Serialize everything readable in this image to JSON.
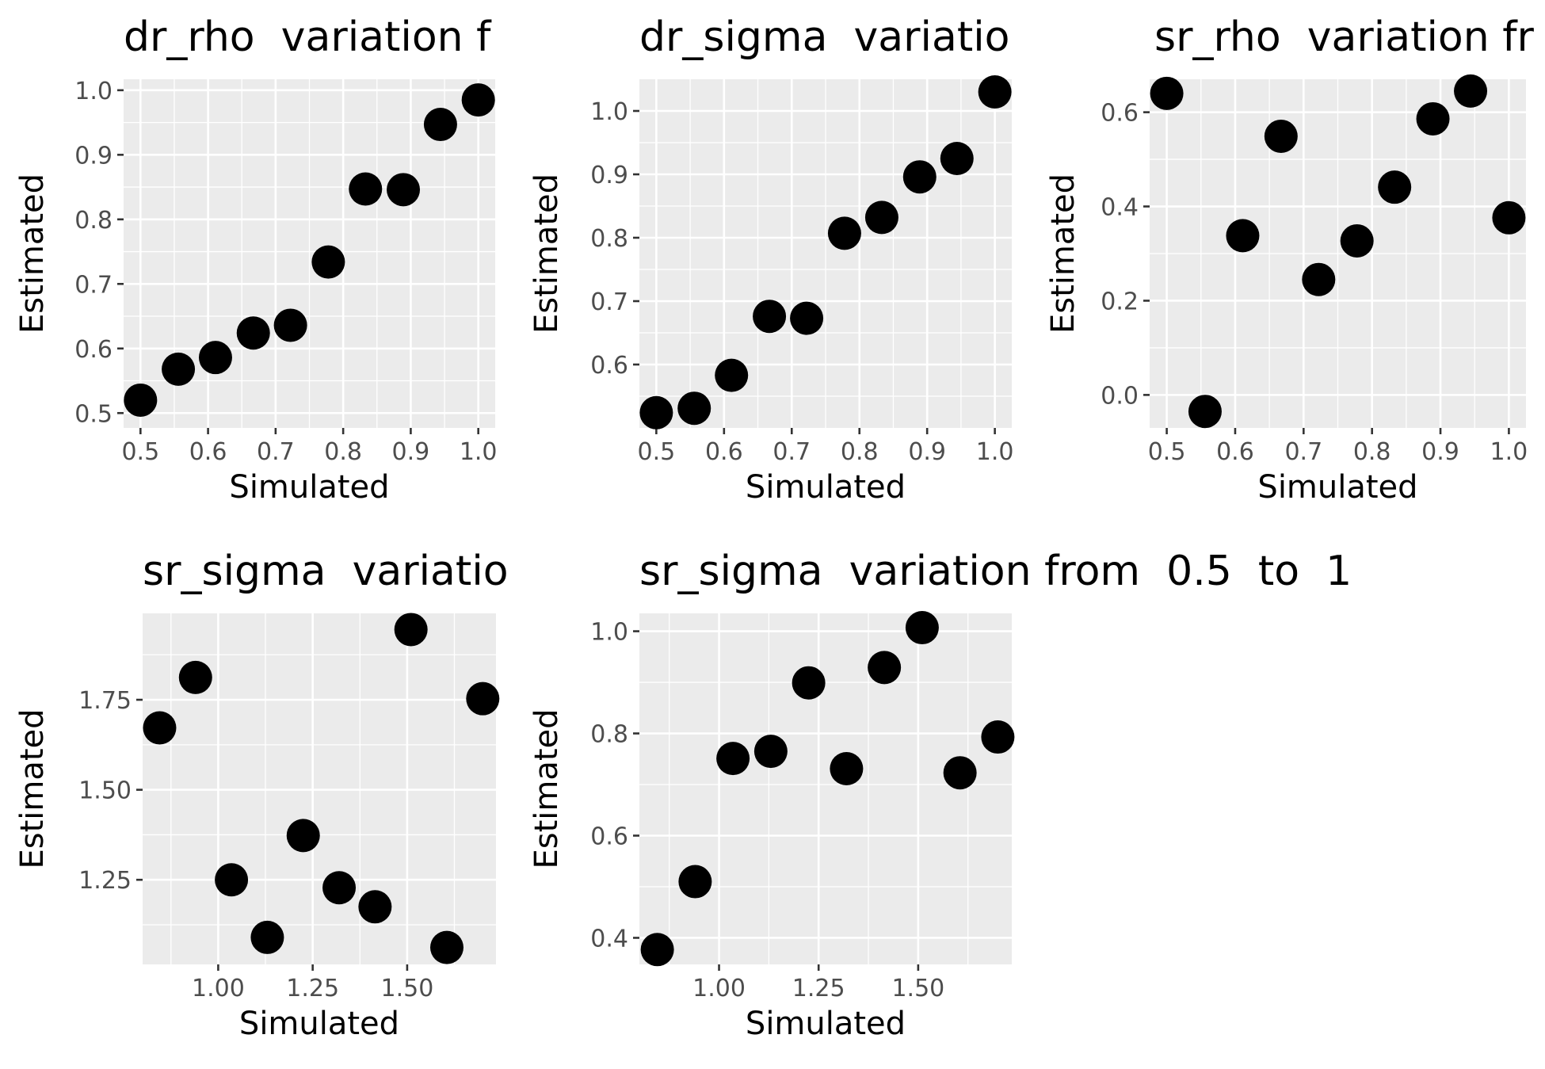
{
  "colors": {
    "panel": "#ebebeb",
    "grid": "#ffffff",
    "point": "#000000",
    "tick_label": "#4d4d4d"
  },
  "chart_data": [
    {
      "type": "scatter",
      "title": "dr_rho  variation f",
      "xlabel": "Simulated",
      "ylabel": "Estimated",
      "xlim": [
        0.475,
        1.025
      ],
      "ylim": [
        0.477,
        1.017
      ],
      "x_ticks": [
        0.5,
        0.6,
        0.7,
        0.8,
        0.9,
        1.0
      ],
      "x_tick_labels": [
        "0.5",
        "0.6",
        "0.7",
        "0.8",
        "0.9",
        "1.0"
      ],
      "y_ticks": [
        0.5,
        0.6,
        0.7,
        0.8,
        0.9,
        1.0
      ],
      "y_tick_labels": [
        "0.5",
        "0.6",
        "0.7",
        "0.8",
        "0.9",
        "1.0"
      ],
      "grid": true,
      "x": [
        0.5,
        0.556,
        0.611,
        0.667,
        0.722,
        0.778,
        0.833,
        0.889,
        0.944,
        1.0
      ],
      "y": [
        0.52,
        0.568,
        0.586,
        0.624,
        0.636,
        0.734,
        0.847,
        0.846,
        0.947,
        0.985
      ]
    },
    {
      "type": "scatter",
      "title": "dr_sigma  variatio",
      "xlabel": "Simulated",
      "ylabel": "Estimated",
      "xlim": [
        0.475,
        1.025
      ],
      "ylim": [
        0.5,
        1.05
      ],
      "x_ticks": [
        0.5,
        0.6,
        0.7,
        0.8,
        0.9,
        1.0
      ],
      "x_tick_labels": [
        "0.5",
        "0.6",
        "0.7",
        "0.8",
        "0.9",
        "1.0"
      ],
      "y_ticks": [
        0.6,
        0.7,
        0.8,
        0.9,
        1.0
      ],
      "y_tick_labels": [
        "0.6",
        "0.7",
        "0.8",
        "0.9",
        "1.0"
      ],
      "grid": true,
      "x": [
        0.5,
        0.556,
        0.611,
        0.667,
        0.722,
        0.778,
        0.833,
        0.889,
        0.944,
        1.0
      ],
      "y": [
        0.524,
        0.531,
        0.583,
        0.676,
        0.673,
        0.807,
        0.832,
        0.896,
        0.925,
        1.03
      ]
    },
    {
      "type": "scatter",
      "title": "sr_rho  variation fr",
      "xlabel": "Simulated",
      "ylabel": "Estimated",
      "xlim": [
        0.475,
        1.025
      ],
      "ylim": [
        -0.07,
        0.67
      ],
      "x_ticks": [
        0.5,
        0.6,
        0.7,
        0.8,
        0.9,
        1.0
      ],
      "x_tick_labels": [
        "0.5",
        "0.6",
        "0.7",
        "0.8",
        "0.9",
        "1.0"
      ],
      "y_ticks": [
        0.0,
        0.2,
        0.4,
        0.6
      ],
      "y_tick_labels": [
        "0.0",
        "0.2",
        "0.4",
        "0.6"
      ],
      "grid": true,
      "x": [
        0.5,
        0.556,
        0.611,
        0.667,
        0.722,
        0.778,
        0.833,
        0.889,
        0.944,
        1.0
      ],
      "y": [
        0.64,
        -0.035,
        0.338,
        0.549,
        0.245,
        0.327,
        0.441,
        0.586,
        0.645,
        0.376
      ]
    },
    {
      "type": "scatter",
      "title": "sr_sigma  variatio",
      "xlabel": "Simulated",
      "ylabel": "Estimated",
      "xlim": [
        0.8,
        1.735
      ],
      "ylim": [
        1.015,
        1.99
      ],
      "x_ticks": [
        1.0,
        1.25,
        1.5
      ],
      "x_tick_labels": [
        "1.00",
        "1.25",
        "1.50"
      ],
      "y_ticks": [
        1.25,
        1.5,
        1.75
      ],
      "y_tick_labels": [
        "1.25",
        "1.50",
        "1.75"
      ],
      "grid": true,
      "x": [
        0.845,
        0.94,
        1.035,
        1.13,
        1.225,
        1.32,
        1.415,
        1.51,
        1.605,
        1.7
      ],
      "y": [
        1.672,
        1.812,
        1.25,
        1.09,
        1.373,
        1.228,
        1.175,
        1.945,
        1.062,
        1.753
      ]
    },
    {
      "type": "scatter",
      "title": "sr_sigma  variation from  0.5  to  1",
      "xlabel": "Simulated",
      "ylabel": "Estimated",
      "xlim": [
        0.8,
        1.735
      ],
      "ylim": [
        0.348,
        1.035
      ],
      "x_ticks": [
        1.0,
        1.25,
        1.5
      ],
      "x_tick_labels": [
        "1.00",
        "1.25",
        "1.50"
      ],
      "y_ticks": [
        0.4,
        0.6,
        0.8,
        1.0
      ],
      "y_tick_labels": [
        "0.4",
        "0.6",
        "0.8",
        "1.0"
      ],
      "grid": true,
      "x": [
        0.845,
        0.94,
        1.035,
        1.13,
        1.225,
        1.32,
        1.415,
        1.51,
        1.605,
        1.7
      ],
      "y": [
        0.377,
        0.51,
        0.751,
        0.765,
        0.899,
        0.731,
        0.929,
        1.007,
        0.723,
        0.793
      ]
    }
  ]
}
